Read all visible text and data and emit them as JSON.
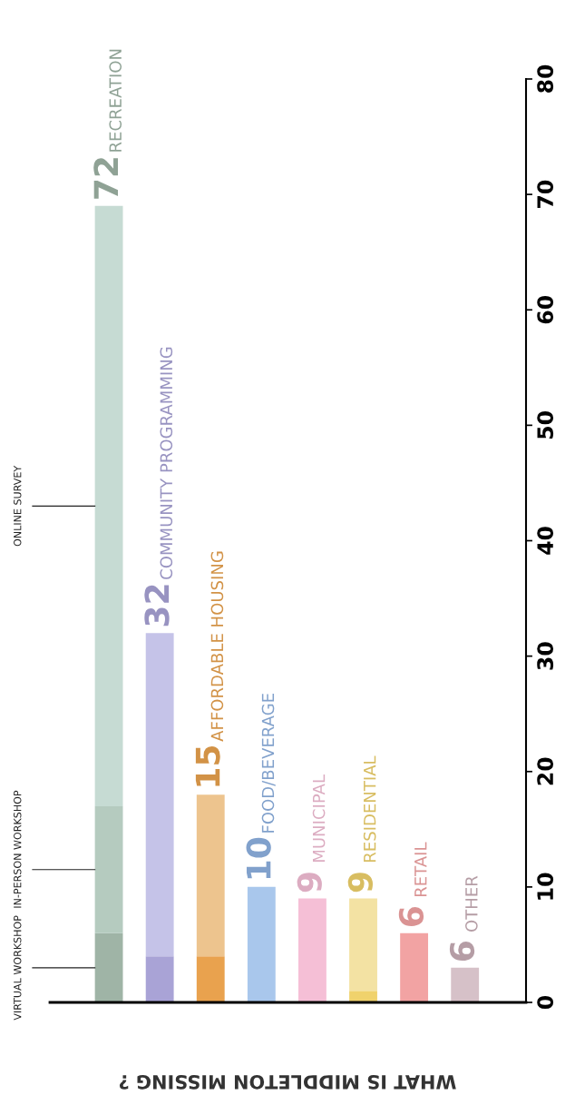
{
  "chart_data": {
    "type": "bar",
    "stacked": true,
    "title": "WHAT IS MIDDLETON MISSING ?",
    "categories": [
      "RECREATION",
      "COMMUNITY PROGRAMMING",
      "AFFORDABLE HOUSING",
      "FOOD/BEVERAGE",
      "MUNICIPAL",
      "RESIDENTIAL",
      "RETAIL",
      "OTHER"
    ],
    "series": [
      {
        "name": "VIRTUAL WORKSHOP",
        "colors": [
          "#9fb4a6",
          "#a9a3d6",
          "#e9a24e",
          "#8fb3e3",
          "#f5bfd6",
          "#f0d26c",
          "#f2a3a3",
          "#c9aeb7"
        ],
        "values": [
          6,
          4,
          4,
          null,
          null,
          1,
          null,
          null
        ]
      },
      {
        "name": "IN-PERSON WORKSHOP",
        "colors": [
          "#b5cbbf",
          "#c5c3e8",
          "#edc48e",
          "#8fb3e3",
          "#f5bfd6",
          "#f3e2a3",
          "#f2a3a3",
          "#c9aeb7"
        ],
        "values": [
          11,
          null,
          null,
          null,
          null,
          null,
          null,
          null
        ]
      },
      {
        "name": "ONLINE SURVEY",
        "colors": [
          "#c6dbd3",
          "#c5c3e8",
          "#edc48e",
          "#a9c7ec",
          "#f5bfd6",
          "#f3e2a3",
          "#f2a3a3",
          "#d6c1c8"
        ],
        "values": [
          52,
          28,
          14,
          10,
          9,
          8,
          6,
          3
        ]
      }
    ],
    "value_labels": [
      "72",
      "32",
      "15",
      "10",
      "9",
      "9",
      "6",
      "6"
    ],
    "ylim": [
      0,
      80
    ],
    "yticks": [
      0,
      10,
      20,
      30,
      40,
      50,
      60,
      70,
      80
    ],
    "tick_labels": "y",
    "grid": false,
    "legend": false
  }
}
